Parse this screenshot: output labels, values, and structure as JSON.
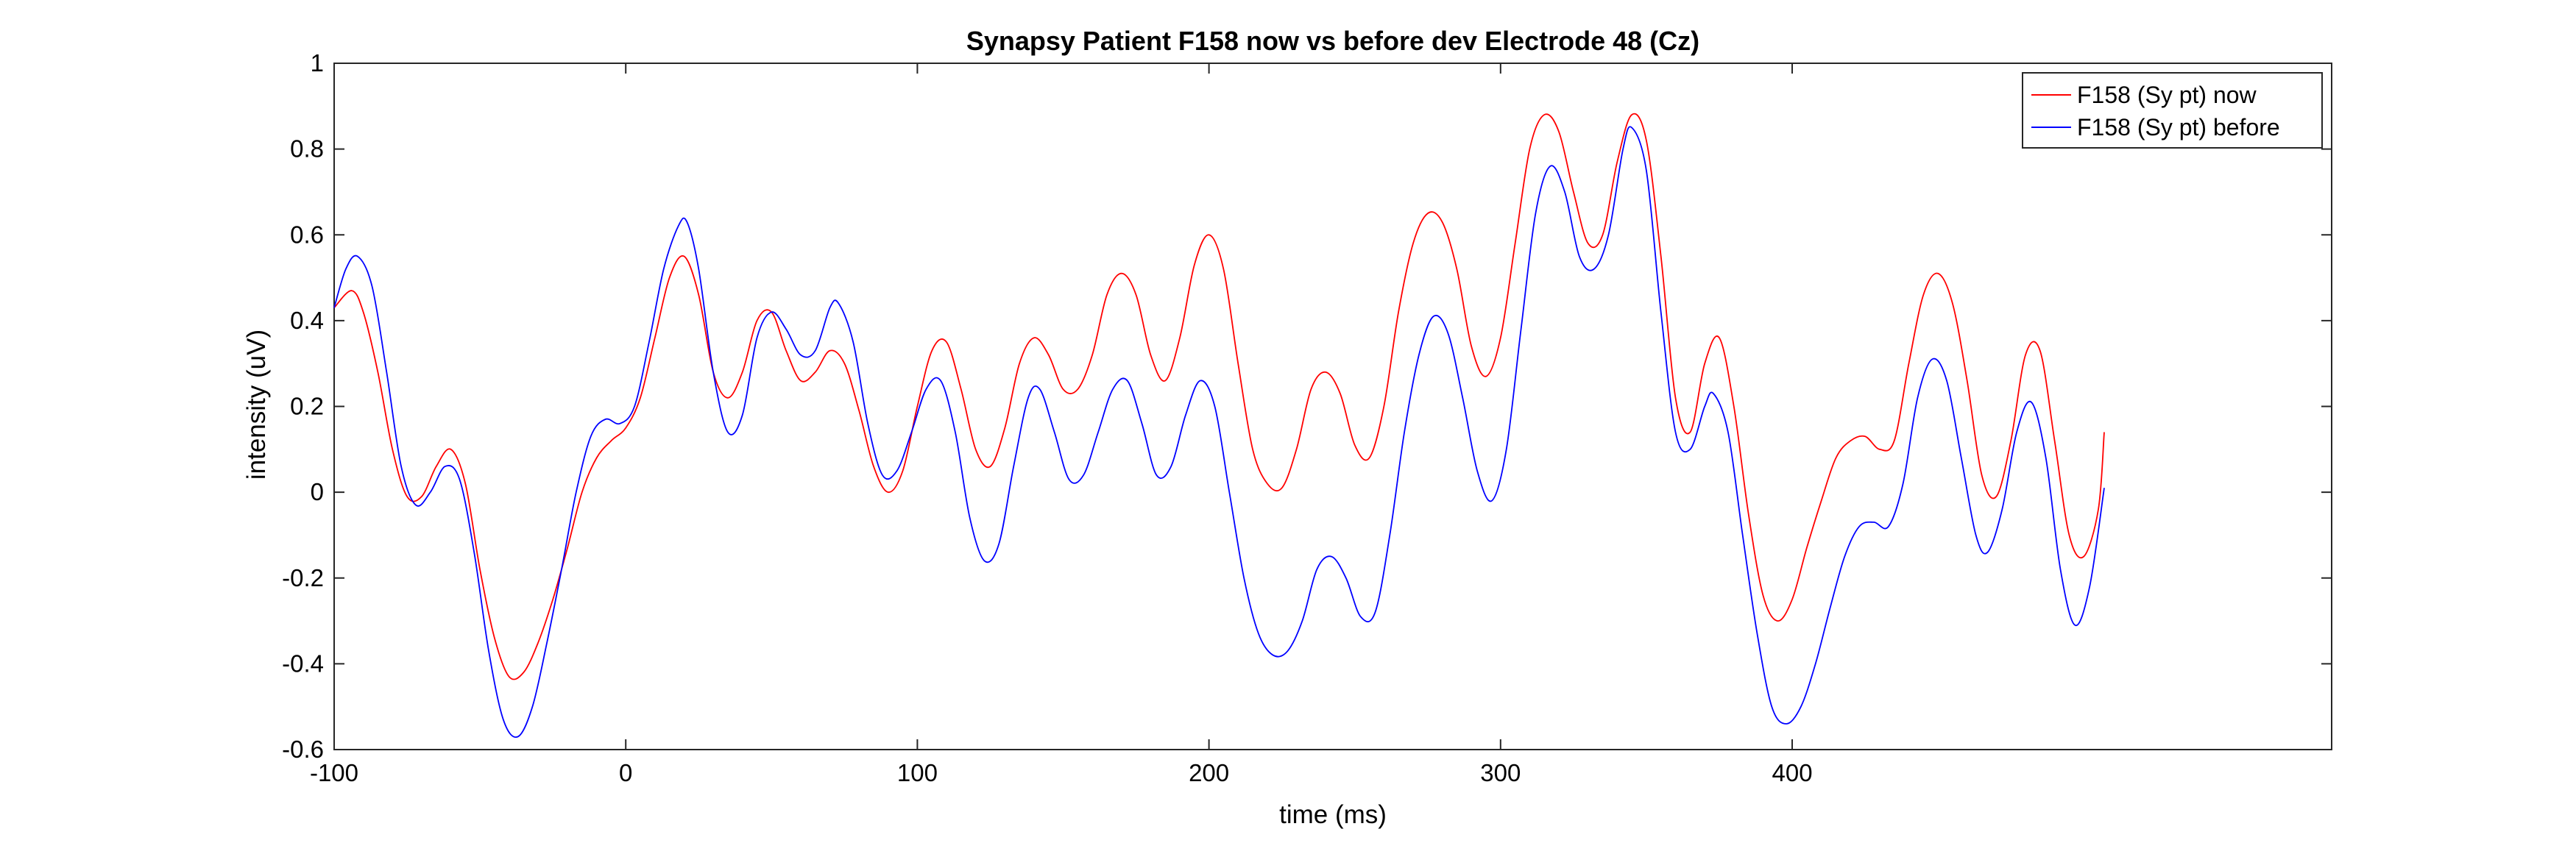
{
  "colors": {
    "now": "#ff0000",
    "before": "#0000ff",
    "axis": "#262626"
  },
  "chart_data": {
    "type": "line",
    "title": "Synapsy Patient F158 now vs before dev Electrode 48 (Cz)",
    "xlabel": "time (ms)",
    "ylabel": "intensity (uV)",
    "xlim": [
      -100,
      585
    ],
    "ylim": [
      -0.6,
      1
    ],
    "xticks": [
      -100,
      0,
      100,
      200,
      300,
      400
    ],
    "xtick_labels": [
      "-100",
      "0",
      "100",
      "200",
      "300",
      "400"
    ],
    "yticks": [
      -0.6,
      -0.4,
      -0.2,
      0,
      0.2,
      0.4,
      0.6,
      0.8,
      1
    ],
    "ytick_labels": [
      "-0.6",
      "-0.4",
      "-0.2",
      "0",
      "0.2",
      "0.4",
      "0.6",
      "0.8",
      "1"
    ],
    "grid": false,
    "legend_position": "top-right",
    "series": [
      {
        "name": "F158 (Sy pt) now",
        "color": "#ff0000",
        "points": [
          [
            -100,
            0.43
          ],
          [
            -94,
            0.47
          ],
          [
            -90,
            0.42
          ],
          [
            -85,
            0.28
          ],
          [
            -80,
            0.1
          ],
          [
            -75,
            -0.01
          ],
          [
            -70,
            -0.01
          ],
          [
            -65,
            0.06
          ],
          [
            -60,
            0.1
          ],
          [
            -55,
            0.02
          ],
          [
            -50,
            -0.18
          ],
          [
            -45,
            -0.34
          ],
          [
            -40,
            -0.43
          ],
          [
            -35,
            -0.42
          ],
          [
            -30,
            -0.35
          ],
          [
            -25,
            -0.25
          ],
          [
            -20,
            -0.13
          ],
          [
            -15,
            0.0
          ],
          [
            -10,
            0.08
          ],
          [
            -5,
            0.12
          ],
          [
            0,
            0.15
          ],
          [
            5,
            0.22
          ],
          [
            10,
            0.36
          ],
          [
            15,
            0.5
          ],
          [
            20,
            0.55
          ],
          [
            25,
            0.46
          ],
          [
            30,
            0.28
          ],
          [
            35,
            0.22
          ],
          [
            40,
            0.28
          ],
          [
            45,
            0.4
          ],
          [
            50,
            0.42
          ],
          [
            55,
            0.33
          ],
          [
            60,
            0.26
          ],
          [
            65,
            0.28
          ],
          [
            70,
            0.33
          ],
          [
            75,
            0.3
          ],
          [
            80,
            0.19
          ],
          [
            85,
            0.06
          ],
          [
            90,
            0.0
          ],
          [
            95,
            0.05
          ],
          [
            100,
            0.2
          ],
          [
            105,
            0.33
          ],
          [
            110,
            0.35
          ],
          [
            115,
            0.24
          ],
          [
            120,
            0.1
          ],
          [
            125,
            0.06
          ],
          [
            130,
            0.15
          ],
          [
            135,
            0.3
          ],
          [
            140,
            0.36
          ],
          [
            145,
            0.32
          ],
          [
            150,
            0.24
          ],
          [
            155,
            0.24
          ],
          [
            160,
            0.32
          ],
          [
            165,
            0.46
          ],
          [
            170,
            0.51
          ],
          [
            175,
            0.46
          ],
          [
            180,
            0.32
          ],
          [
            185,
            0.26
          ],
          [
            190,
            0.36
          ],
          [
            195,
            0.53
          ],
          [
            200,
            0.6
          ],
          [
            205,
            0.52
          ],
          [
            210,
            0.3
          ],
          [
            215,
            0.1
          ],
          [
            220,
            0.02
          ],
          [
            225,
            0.01
          ],
          [
            230,
            0.1
          ],
          [
            235,
            0.24
          ],
          [
            240,
            0.28
          ],
          [
            245,
            0.23
          ],
          [
            250,
            0.11
          ],
          [
            255,
            0.08
          ],
          [
            260,
            0.2
          ],
          [
            265,
            0.42
          ],
          [
            270,
            0.58
          ],
          [
            275,
            0.65
          ],
          [
            280,
            0.63
          ],
          [
            285,
            0.52
          ],
          [
            290,
            0.34
          ],
          [
            295,
            0.27
          ],
          [
            300,
            0.36
          ],
          [
            305,
            0.58
          ],
          [
            310,
            0.8
          ],
          [
            315,
            0.88
          ],
          [
            320,
            0.84
          ],
          [
            325,
            0.7
          ],
          [
            330,
            0.58
          ],
          [
            335,
            0.6
          ],
          [
            340,
            0.77
          ],
          [
            345,
            0.88
          ],
          [
            350,
            0.82
          ],
          [
            355,
            0.55
          ],
          [
            360,
            0.22
          ],
          [
            365,
            0.14
          ],
          [
            370,
            0.3
          ],
          [
            375,
            0.36
          ],
          [
            380,
            0.2
          ],
          [
            385,
            -0.05
          ],
          [
            390,
            -0.24
          ],
          [
            395,
            -0.3
          ],
          [
            400,
            -0.25
          ],
          [
            405,
            -0.13
          ],
          [
            410,
            -0.02
          ],
          [
            415,
            0.08
          ],
          [
            420,
            0.12
          ],
          [
            425,
            0.13
          ],
          [
            430,
            0.1
          ],
          [
            435,
            0.12
          ],
          [
            440,
            0.3
          ],
          [
            445,
            0.46
          ],
          [
            450,
            0.51
          ],
          [
            455,
            0.44
          ],
          [
            460,
            0.26
          ],
          [
            465,
            0.04
          ],
          [
            470,
            -0.01
          ],
          [
            475,
            0.12
          ],
          [
            480,
            0.32
          ],
          [
            485,
            0.33
          ],
          [
            490,
            0.12
          ],
          [
            495,
            -0.1
          ],
          [
            500,
            -0.15
          ],
          [
            505,
            -0.04
          ],
          [
            507,
            0.14
          ]
        ]
      },
      {
        "name": "F158 (Sy pt) before",
        "color": "#0000ff",
        "points": [
          [
            -100,
            0.43
          ],
          [
            -96,
            0.52
          ],
          [
            -92,
            0.55
          ],
          [
            -87,
            0.48
          ],
          [
            -82,
            0.28
          ],
          [
            -77,
            0.06
          ],
          [
            -72,
            -0.03
          ],
          [
            -67,
            0.0
          ],
          [
            -62,
            0.06
          ],
          [
            -57,
            0.03
          ],
          [
            -52,
            -0.14
          ],
          [
            -47,
            -0.37
          ],
          [
            -42,
            -0.53
          ],
          [
            -37,
            -0.57
          ],
          [
            -32,
            -0.5
          ],
          [
            -27,
            -0.35
          ],
          [
            -22,
            -0.18
          ],
          [
            -17,
            0.0
          ],
          [
            -12,
            0.13
          ],
          [
            -7,
            0.17
          ],
          [
            -2,
            0.16
          ],
          [
            3,
            0.2
          ],
          [
            8,
            0.35
          ],
          [
            13,
            0.52
          ],
          [
            18,
            0.62
          ],
          [
            21,
            0.63
          ],
          [
            25,
            0.52
          ],
          [
            30,
            0.28
          ],
          [
            35,
            0.14
          ],
          [
            40,
            0.18
          ],
          [
            45,
            0.36
          ],
          [
            50,
            0.42
          ],
          [
            55,
            0.38
          ],
          [
            60,
            0.32
          ],
          [
            65,
            0.33
          ],
          [
            70,
            0.43
          ],
          [
            73,
            0.44
          ],
          [
            78,
            0.35
          ],
          [
            83,
            0.16
          ],
          [
            88,
            0.04
          ],
          [
            93,
            0.05
          ],
          [
            98,
            0.14
          ],
          [
            103,
            0.24
          ],
          [
            108,
            0.26
          ],
          [
            113,
            0.14
          ],
          [
            118,
            -0.06
          ],
          [
            123,
            -0.16
          ],
          [
            128,
            -0.12
          ],
          [
            133,
            0.06
          ],
          [
            138,
            0.22
          ],
          [
            142,
            0.24
          ],
          [
            147,
            0.14
          ],
          [
            152,
            0.03
          ],
          [
            157,
            0.04
          ],
          [
            162,
            0.14
          ],
          [
            167,
            0.24
          ],
          [
            172,
            0.26
          ],
          [
            177,
            0.16
          ],
          [
            182,
            0.04
          ],
          [
            187,
            0.06
          ],
          [
            192,
            0.18
          ],
          [
            197,
            0.26
          ],
          [
            202,
            0.2
          ],
          [
            207,
            0.0
          ],
          [
            212,
            -0.2
          ],
          [
            217,
            -0.33
          ],
          [
            222,
            -0.38
          ],
          [
            227,
            -0.37
          ],
          [
            232,
            -0.3
          ],
          [
            237,
            -0.18
          ],
          [
            242,
            -0.15
          ],
          [
            247,
            -0.2
          ],
          [
            252,
            -0.29
          ],
          [
            257,
            -0.28
          ],
          [
            262,
            -0.1
          ],
          [
            267,
            0.14
          ],
          [
            272,
            0.32
          ],
          [
            277,
            0.41
          ],
          [
            282,
            0.37
          ],
          [
            287,
            0.22
          ],
          [
            292,
            0.05
          ],
          [
            297,
            -0.02
          ],
          [
            302,
            0.1
          ],
          [
            307,
            0.38
          ],
          [
            312,
            0.65
          ],
          [
            317,
            0.76
          ],
          [
            322,
            0.7
          ],
          [
            327,
            0.55
          ],
          [
            332,
            0.52
          ],
          [
            337,
            0.6
          ],
          [
            342,
            0.8
          ],
          [
            345,
            0.85
          ],
          [
            350,
            0.75
          ],
          [
            355,
            0.42
          ],
          [
            360,
            0.14
          ],
          [
            365,
            0.1
          ],
          [
            370,
            0.2
          ],
          [
            373,
            0.23
          ],
          [
            378,
            0.14
          ],
          [
            383,
            -0.1
          ],
          [
            388,
            -0.33
          ],
          [
            393,
            -0.5
          ],
          [
            398,
            -0.54
          ],
          [
            403,
            -0.5
          ],
          [
            408,
            -0.4
          ],
          [
            413,
            -0.27
          ],
          [
            418,
            -0.15
          ],
          [
            423,
            -0.08
          ],
          [
            428,
            -0.07
          ],
          [
            433,
            -0.08
          ],
          [
            438,
            0.02
          ],
          [
            443,
            0.22
          ],
          [
            448,
            0.31
          ],
          [
            453,
            0.26
          ],
          [
            458,
            0.08
          ],
          [
            463,
            -0.1
          ],
          [
            467,
            -0.14
          ],
          [
            472,
            -0.04
          ],
          [
            477,
            0.14
          ],
          [
            482,
            0.21
          ],
          [
            487,
            0.08
          ],
          [
            492,
            -0.18
          ],
          [
            497,
            -0.31
          ],
          [
            502,
            -0.22
          ],
          [
            507,
            0.01
          ]
        ]
      }
    ]
  }
}
